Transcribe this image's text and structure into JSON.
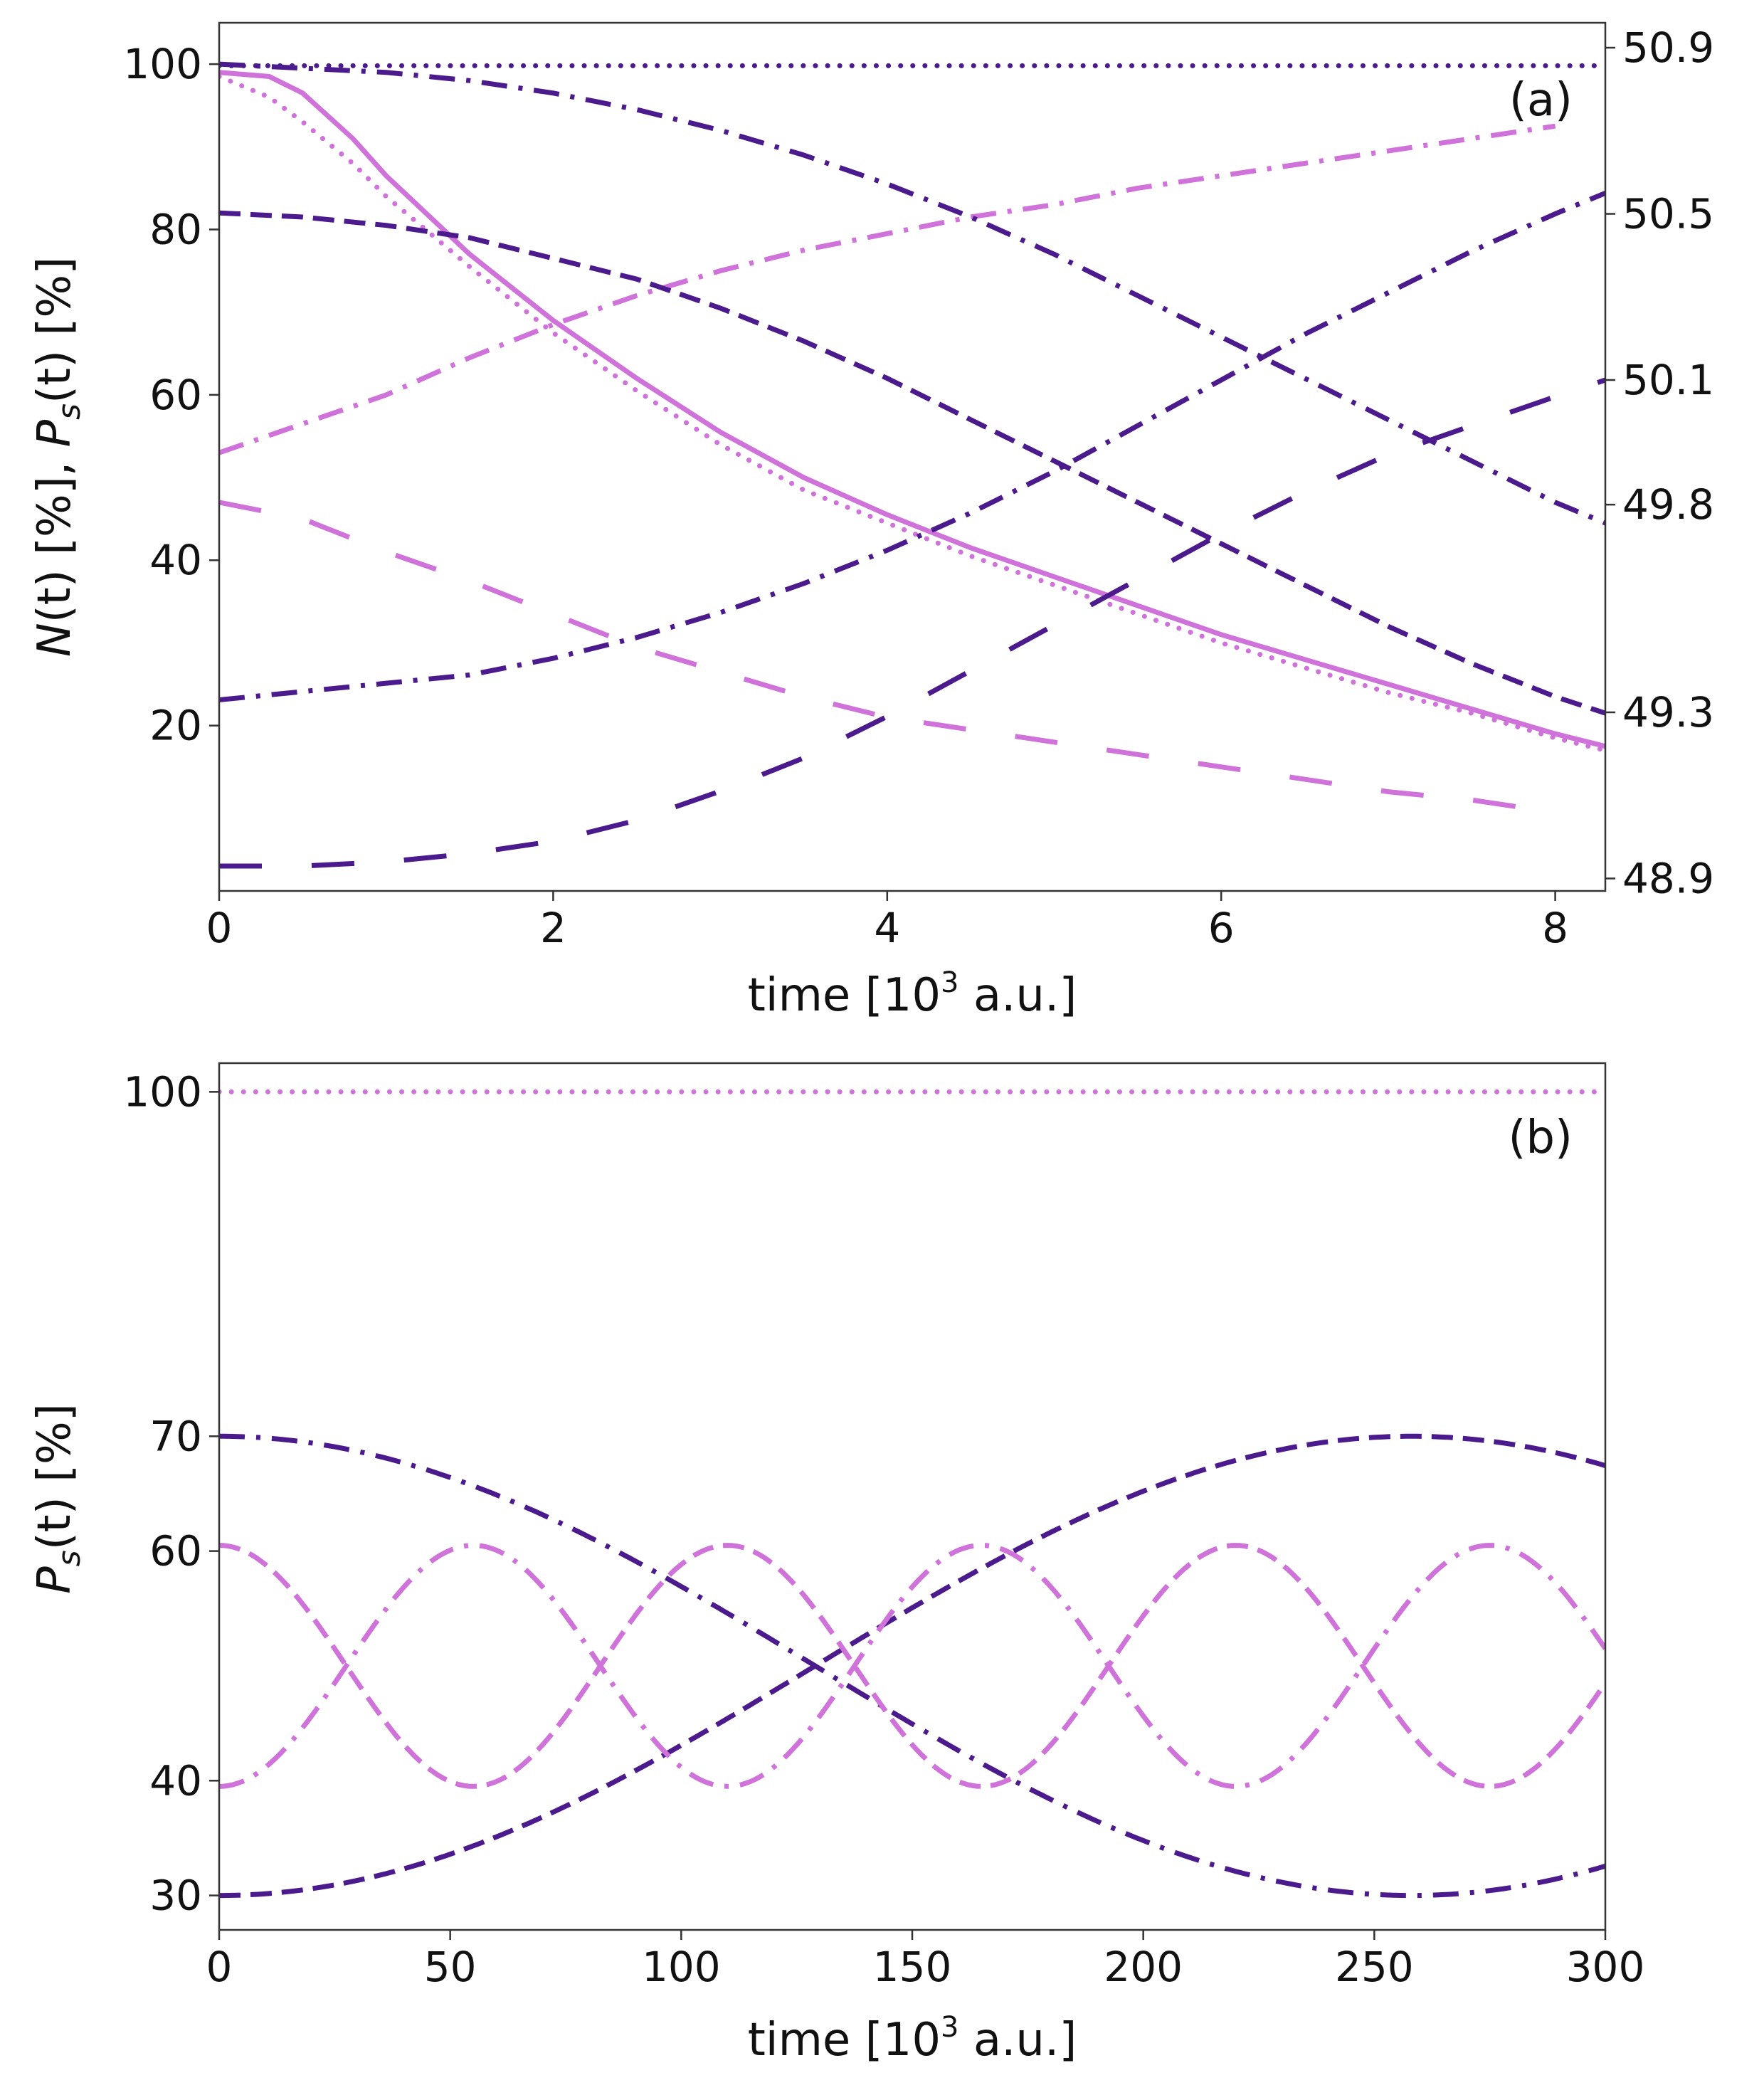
{
  "chart_data": [
    {
      "panel": "(a)",
      "type": "line",
      "xlabel": "time [10^3 a.u.]",
      "xlabel_parts": {
        "before": "time [10",
        "sup": "3",
        "after": " a.u.]"
      },
      "ylabel": "N(t) [%], P_s(t) [%]",
      "ylabel_parts": {
        "n_italic": "N",
        "paren_t1": "(t)",
        "mid": " [%], ",
        "p_italic": "P",
        "sub": "s",
        "paren_t2": "(t)",
        "end": " [%]"
      },
      "xlim": [
        0,
        8.3
      ],
      "ylim": [
        0,
        105
      ],
      "xticks": [
        0,
        2,
        4,
        6,
        8
      ],
      "xtick_labels": [
        "0",
        "2",
        "4",
        "6",
        "8"
      ],
      "yticks": [
        20,
        40,
        60,
        80,
        100
      ],
      "ytick_labels": [
        "20",
        "40",
        "60",
        "80",
        "100"
      ],
      "right_ylim": [
        48.87,
        50.96
      ],
      "right_yticks": [
        48.9,
        49.3,
        49.8,
        50.1,
        50.5,
        50.9
      ],
      "right_ytick_labels": [
        "48.9",
        "49.3",
        "49.8",
        "50.1",
        "50.5",
        "50.9"
      ],
      "legend": "none",
      "series": [
        {
          "name": "N(t) reference",
          "axis": "left",
          "color": "#4b1a8c",
          "style": "dotted",
          "x": [
            0,
            8.3
          ],
          "y": [
            99.8,
            99.8
          ]
        },
        {
          "name": "N(t) solid",
          "axis": "left",
          "color": "#cf72d9",
          "style": "solid",
          "x": [
            0,
            0.3,
            0.5,
            0.8,
            1,
            1.5,
            2,
            2.5,
            3,
            3.5,
            4,
            4.5,
            5,
            5.5,
            6,
            6.5,
            7,
            7.5,
            8,
            8.3
          ],
          "y": [
            99,
            98.5,
            96.5,
            91,
            86.5,
            77,
            69,
            62,
            55.5,
            50,
            45.5,
            41.5,
            38,
            34.5,
            31,
            28,
            25,
            22,
            19,
            17.5
          ]
        },
        {
          "name": "N(t) dotted",
          "axis": "left",
          "color": "#cf72d9",
          "style": "dotted",
          "x": [
            0,
            0.3,
            0.5,
            0.8,
            1,
            1.5,
            2,
            2.5,
            3,
            3.5,
            4,
            4.5,
            5,
            5.5,
            6,
            6.5,
            7,
            7.5,
            8,
            8.3
          ],
          "y": [
            98.5,
            96,
            93,
            88,
            84,
            75.5,
            67.5,
            60.5,
            54,
            48.5,
            44.5,
            40.5,
            37,
            33.5,
            30,
            27,
            24,
            21.5,
            18.5,
            17
          ]
        },
        {
          "name": "P_s dash-dot light",
          "axis": "left",
          "color": "#cf72d9",
          "style": "dashdot",
          "x": [
            0,
            0.5,
            1,
            1.5,
            2,
            2.5,
            3,
            3.5,
            4,
            4.5,
            5,
            5.5,
            6,
            6.5,
            7,
            7.5,
            8
          ],
          "y": [
            53,
            56.5,
            60,
            64.5,
            68.5,
            72,
            75,
            77.5,
            79.5,
            81.5,
            83,
            85,
            86.5,
            88,
            89.5,
            91,
            92.5
          ]
        },
        {
          "name": "P_s dash-dot dark",
          "axis": "right",
          "color": "#4b1a8c",
          "style": "dashdot",
          "x": [
            0,
            0.5,
            1,
            1.5,
            2,
            2.5,
            3,
            3.5,
            4,
            4.5,
            5,
            5.5,
            6,
            6.5,
            7,
            7.5,
            8,
            8.3
          ],
          "y": [
            49.33,
            49.35,
            49.37,
            49.39,
            49.43,
            49.48,
            49.54,
            49.61,
            49.69,
            49.78,
            49.88,
            49.99,
            50.1,
            50.21,
            50.31,
            50.41,
            50.5,
            50.55
          ]
        },
        {
          "name": "P_s dashed light",
          "axis": "left",
          "color": "#cf72d9",
          "style": "longdash",
          "x": [
            0,
            0.5,
            1,
            1.5,
            2,
            2.5,
            3,
            3.5,
            4,
            4.5,
            5,
            5.5,
            6,
            6.5,
            7,
            7.5,
            8
          ],
          "y": [
            47,
            45,
            41,
            37.5,
            33.5,
            29.5,
            26.5,
            23.5,
            21,
            19.5,
            18,
            16.5,
            15,
            13.5,
            12,
            11,
            9.5
          ]
        },
        {
          "name": "P_s dashed dark",
          "axis": "right",
          "color": "#4b1a8c",
          "style": "longdash",
          "x": [
            0,
            0.5,
            1,
            1.5,
            2,
            2.5,
            3,
            3.5,
            4,
            4.5,
            5,
            5.5,
            6,
            6.5,
            7,
            7.5,
            8,
            8.3
          ],
          "y": [
            48.93,
            48.93,
            48.94,
            48.96,
            48.99,
            49.04,
            49.11,
            49.19,
            49.29,
            49.4,
            49.51,
            49.62,
            49.73,
            49.83,
            49.92,
            49.99,
            50.06,
            50.1
          ]
        },
        {
          "name": "N(t) dashed dark",
          "axis": "left",
          "color": "#4b1a8c",
          "style": "dashed",
          "x": [
            0,
            0.5,
            1,
            1.5,
            2,
            2.5,
            3,
            3.5,
            4,
            4.5,
            5,
            5.5,
            6,
            6.5,
            7,
            7.5,
            8,
            8.3
          ],
          "y": [
            82,
            81.5,
            80.5,
            79,
            76.5,
            74,
            70.5,
            66.5,
            62,
            57,
            52,
            47,
            42,
            37,
            32,
            27.5,
            23.5,
            21.5
          ]
        },
        {
          "name": "N(t) dash-dot dark",
          "axis": "left",
          "color": "#4b1a8c",
          "style": "dashdot",
          "x": [
            0,
            0.5,
            1,
            1.5,
            2,
            2.5,
            3,
            3.5,
            4,
            4.5,
            5,
            5.5,
            6,
            6.5,
            7,
            7.5,
            8,
            8.3
          ],
          "y": [
            100,
            99.5,
            99,
            98,
            96.5,
            94.5,
            92,
            89,
            85.5,
            81.5,
            77,
            72,
            67,
            62,
            57,
            52,
            47,
            44.5
          ]
        }
      ]
    },
    {
      "panel": "(b)",
      "type": "line",
      "xlabel": "time [10^3 a.u.]",
      "xlabel_parts": {
        "before": "time [10",
        "sup": "3",
        "after": " a.u.]"
      },
      "ylabel": "P_s(t) [%]",
      "ylabel_parts": {
        "p_italic": "P",
        "sub": "s",
        "paren_t": "(t)",
        "end": " [%]"
      },
      "xlim": [
        0,
        300
      ],
      "ylim": [
        27,
        102.5
      ],
      "xticks": [
        0,
        50,
        100,
        150,
        200,
        250,
        300
      ],
      "xtick_labels": [
        "0",
        "50",
        "100",
        "150",
        "200",
        "250",
        "300"
      ],
      "yticks": [
        30,
        40,
        60,
        70,
        100
      ],
      "ytick_labels": [
        "30",
        "40",
        "60",
        "70",
        "100"
      ],
      "legend": "none",
      "series": [
        {
          "name": "P_s dotted",
          "color": "#cf72d9",
          "style": "dotted",
          "function": "constant",
          "value": 100
        },
        {
          "name": "P_s dash-dot dark",
          "color": "#4b1a8c",
          "style": "dashdot",
          "function": "cos",
          "center": 50,
          "amplitude": 20,
          "period": 516,
          "phase": 0
        },
        {
          "name": "P_s dashed dark",
          "color": "#4b1a8c",
          "style": "dashed",
          "function": "cos",
          "center": 50,
          "amplitude": -20,
          "period": 516,
          "phase": 0
        },
        {
          "name": "P_s dashed light",
          "color": "#cf72d9",
          "style": "dashed",
          "function": "cos",
          "center": 50,
          "amplitude": 10.5,
          "period": 110,
          "phase": 0
        },
        {
          "name": "P_s dash-dot light",
          "color": "#cf72d9",
          "style": "dashdot",
          "function": "cos",
          "center": 50,
          "amplitude": -10.5,
          "period": 110,
          "phase": 0
        }
      ]
    }
  ]
}
